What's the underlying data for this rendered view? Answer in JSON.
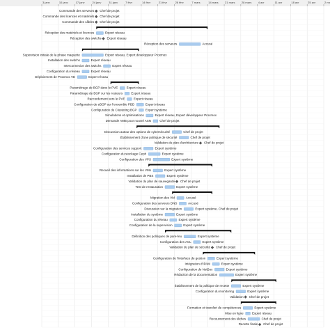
{
  "chart_data": {
    "type": "gantt",
    "xlim": [
      0,
      119
    ],
    "xticks": [
      {
        "value": 0,
        "label": "3 janv"
      },
      {
        "value": 7,
        "label": "10 janv"
      },
      {
        "value": 14,
        "label": "17 janv"
      },
      {
        "value": 21,
        "label": "24 janv"
      },
      {
        "value": 28,
        "label": "31 janv"
      },
      {
        "value": 35,
        "label": "7 févr"
      },
      {
        "value": 42,
        "label": "14 févr"
      },
      {
        "value": 49,
        "label": "21 févr"
      },
      {
        "value": 56,
        "label": "28 févr"
      },
      {
        "value": 63,
        "label": "7 mars"
      },
      {
        "value": 70,
        "label": "14 mars"
      },
      {
        "value": 77,
        "label": "21 mars"
      },
      {
        "value": 84,
        "label": "28 mars"
      },
      {
        "value": 91,
        "label": "4 avr"
      },
      {
        "value": 98,
        "label": "11 avr"
      },
      {
        "value": 105,
        "label": "18 avr"
      },
      {
        "value": 112,
        "label": "25 avr"
      },
      {
        "value": 119,
        "label": "2 mai"
      }
    ],
    "colors": {
      "task": "#a9cbee",
      "summary": "#111111",
      "milestone": "#555555"
    },
    "grid": true,
    "tasks": [
      {
        "kind": "milestone",
        "name": "Commande des serveurs",
        "start": 23,
        "resource": "Chef de projet"
      },
      {
        "kind": "milestone",
        "name": "Commande des licences et matériels",
        "start": 23,
        "resource": "Chef de projet"
      },
      {
        "kind": "milestone",
        "name": "Commande des câbles",
        "start": 23,
        "resource": "Chef de projet"
      },
      {
        "kind": "summary",
        "start": 23,
        "end": 70
      },
      {
        "kind": "task",
        "name": "Réception des matériels et licences",
        "start": 23,
        "end": 26,
        "resource": "Expert réseau"
      },
      {
        "kind": "milestone",
        "name": "Réception des switchs",
        "start": 26,
        "resource": "Expert réseau"
      },
      {
        "kind": "task",
        "name": "Réception des serveurs",
        "start": 58,
        "end": 67,
        "resource": "Accusé"
      },
      {
        "kind": "summary",
        "start": 17,
        "end": 41
      },
      {
        "kind": "task",
        "name": "Supervision initiale de la phase maquette",
        "start": 17,
        "end": 26,
        "resource": "Expert réseau, Expert développeur Proxmox"
      },
      {
        "kind": "task",
        "name": "Installation des switchs",
        "start": 17,
        "end": 20,
        "resource": "Expert réseau"
      },
      {
        "kind": "task",
        "name": "Interconnexion des switchs",
        "start": 26,
        "end": 29,
        "resource": "Expert réseau"
      },
      {
        "kind": "task",
        "name": "Configuration du réseau",
        "start": 17,
        "end": 20,
        "resource": "Expert réseau"
      },
      {
        "kind": "task",
        "name": "Déploiement de Proxmox VE",
        "start": 15,
        "end": 19,
        "resource": "Expert réseau"
      },
      {
        "kind": "summary",
        "start": 29,
        "end": 41
      },
      {
        "kind": "task",
        "name": "Paramétrage de BGP dans le PVE",
        "start": 33,
        "end": 35,
        "resource": "Expert réseau"
      },
      {
        "kind": "task",
        "name": "Paramétrage de BGP sur les routeurs",
        "start": 35,
        "end": 37,
        "resource": "Expert réseau"
      },
      {
        "kind": "task",
        "name": "Raccordement vers le PVE",
        "start": 36,
        "end": 38,
        "resource": "Expert réseau"
      },
      {
        "kind": "task",
        "name": "Configuration de eBGP sur l'ensemble PBD",
        "start": 40,
        "end": 43,
        "resource": "Expert réseau"
      },
      {
        "kind": "task",
        "name": "Configuration du Clustering BGP",
        "start": 41,
        "end": 43,
        "resource": "Expert système"
      },
      {
        "kind": "task",
        "name": "Simulations et optimisations",
        "start": 44,
        "end": 47,
        "resource": "Expert réseau, Expert développeur Proxmox"
      },
      {
        "kind": "task",
        "name": "Demande AMB pour nouvel ASN",
        "start": 47,
        "end": 49,
        "resource": "Chef de projet"
      },
      {
        "kind": "summary",
        "start": 40,
        "end": 75
      },
      {
        "kind": "task",
        "name": "Discussion autour des options de cybersécurité",
        "start": 55,
        "end": 59,
        "resource": "Chef de projet"
      },
      {
        "kind": "task",
        "name": "Établissement d'une politique de sécurité",
        "start": 58,
        "end": 62,
        "resource": "Chef de projet"
      },
      {
        "kind": "milestone",
        "name": "Validation du plan d'architecture",
        "start": 67,
        "resource": "Chef de projet"
      },
      {
        "kind": "task",
        "name": "Configuration des services support",
        "start": 43,
        "end": 47,
        "resource": "Expert système"
      },
      {
        "kind": "task",
        "name": "Configuration du stockage Ceph",
        "start": 45,
        "end": 50,
        "resource": "Expert système"
      },
      {
        "kind": "task",
        "name": "Configuration des VPS",
        "start": 47,
        "end": 54,
        "resource": "Expert système"
      },
      {
        "kind": "summary",
        "start": 45,
        "end": 72
      },
      {
        "kind": "task",
        "name": "Recueil des informations sur les VMs",
        "start": 47,
        "end": 51,
        "resource": "Expert système"
      },
      {
        "kind": "task",
        "name": "Installation de PBS",
        "start": 48,
        "end": 52,
        "resource": "Expert système"
      },
      {
        "kind": "milestone",
        "name": "Validation du plan de sauvegarde",
        "start": 57,
        "resource": "Chef de projet"
      },
      {
        "kind": "task",
        "name": "Test de restauration",
        "start": 52,
        "end": 56,
        "resource": "Expert système"
      },
      {
        "kind": "summary",
        "start": 55,
        "end": 72
      },
      {
        "kind": "task",
        "name": "Migration des VM",
        "start": 57,
        "end": 60,
        "resource": "Accusé"
      },
      {
        "kind": "task",
        "name": "Configuration des serveurs DNS",
        "start": 58,
        "end": 61,
        "resource": "Accusé"
      },
      {
        "kind": "task",
        "name": "Discussion sur la migration",
        "start": 60,
        "end": 64,
        "resource": "Expert système, Chef de projet"
      },
      {
        "kind": "task",
        "name": "Installation du système",
        "start": 52,
        "end": 56,
        "resource": "Expert système"
      },
      {
        "kind": "task",
        "name": "Configuration du réseau",
        "start": 54,
        "end": 57,
        "resource": "Expert système"
      },
      {
        "kind": "task",
        "name": "Configuration de la supervision",
        "start": 56,
        "end": 59,
        "resource": "Expert système"
      },
      {
        "kind": "summary",
        "start": 52,
        "end": 80
      },
      {
        "kind": "task",
        "name": "Définition des politiques de pare-feu",
        "start": 60,
        "end": 65,
        "resource": "Expert système"
      },
      {
        "kind": "task",
        "name": "Configuration des ACL",
        "start": 64,
        "end": 67,
        "resource": "Expert système"
      },
      {
        "kind": "milestone",
        "name": "Validation du plan de sécurité",
        "start": 72,
        "resource": "Chef de projet"
      },
      {
        "kind": "summary",
        "start": 68,
        "end": 90
      },
      {
        "kind": "task",
        "name": "Configuration de l'interface de gestion",
        "start": 70,
        "end": 73,
        "resource": "Expert système"
      },
      {
        "kind": "task",
        "name": "Intégration d'IPAM",
        "start": 72,
        "end": 75,
        "resource": "Expert système"
      },
      {
        "kind": "task",
        "name": "Configuration de NetBox",
        "start": 73,
        "end": 77,
        "resource": "Expert système"
      },
      {
        "kind": "task",
        "name": "Rédaction de la documentation",
        "start": 75,
        "end": 81,
        "resource": "Expert système"
      },
      {
        "kind": "summary",
        "start": 80,
        "end": 99
      },
      {
        "kind": "task",
        "name": "Établissement de la politique de recette",
        "start": 80,
        "end": 84,
        "resource": "Expert système"
      },
      {
        "kind": "task",
        "name": "Configuration du monitoring",
        "start": 82,
        "end": 86,
        "resource": "Expert système"
      },
      {
        "kind": "milestone",
        "name": "Validation",
        "start": 86,
        "resource": "Chef de projet"
      },
      {
        "kind": "summary",
        "start": 84,
        "end": 99
      },
      {
        "kind": "task",
        "name": "Formation et transfert de compétences",
        "start": 85,
        "end": 89,
        "resource": "Expert système"
      },
      {
        "kind": "task",
        "name": "Mise en ligne",
        "start": 86,
        "end": 88,
        "resource": "Expert réseau"
      },
      {
        "kind": "task",
        "name": "Recouvrement des tâches",
        "start": 87,
        "end": 92,
        "resource": "Chef de projet"
      },
      {
        "kind": "milestone",
        "name": "Recette finale",
        "start": 92,
        "resource": "Chef de projet"
      }
    ]
  }
}
